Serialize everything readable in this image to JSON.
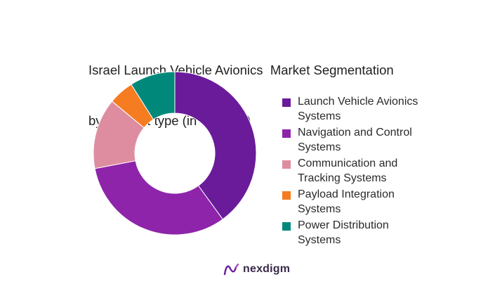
{
  "chart_data": {
    "type": "pie",
    "donut": true,
    "title_lines": [
      "Israel Launch Vehicle Avionics  Market Segmentation",
      "by Product type (in value %)"
    ],
    "categories": [
      "Launch Vehicle Avionics Systems",
      "Navigation and Control Systems",
      "Communication and Tracking Systems",
      "Payload Integration Systems",
      "Power Distribution Systems"
    ],
    "legend_lines": [
      [
        "Launch Vehicle Avionics",
        "Systems"
      ],
      [
        "Navigation and Control",
        "Systems"
      ],
      [
        "Communication and",
        "Tracking Systems"
      ],
      [
        "Payload Integration",
        "Systems"
      ],
      [
        "Power Distribution",
        "Systems"
      ]
    ],
    "values": [
      40,
      32,
      14,
      5,
      9
    ],
    "colors": [
      "#6a1b9a",
      "#8e24aa",
      "#de8da0",
      "#f57c20",
      "#00897b"
    ],
    "legend_position": "right"
  },
  "brand": {
    "name": "nexdigm",
    "logo_icon": "nexdigm-logo-icon",
    "color": "#6a1b9a"
  }
}
